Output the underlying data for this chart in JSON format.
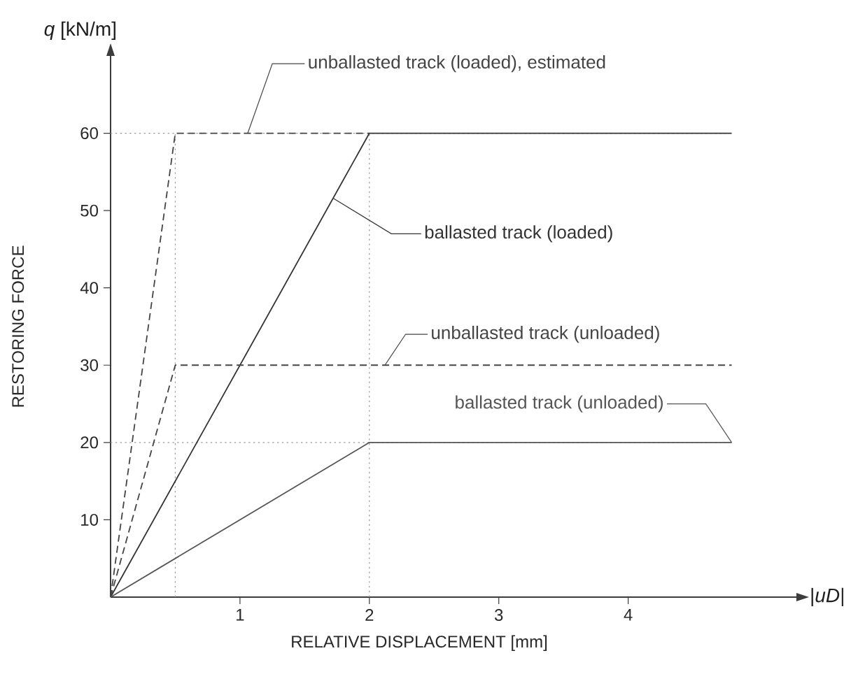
{
  "chart_data": {
    "type": "line",
    "xlabel": "RELATIVE DISPLACEMENT [mm]",
    "ylabel": "RESTORING FORCE",
    "annotations": [
      "*q* [kN/m]",
      "|*uD*|"
    ],
    "xlim": [
      0,
      5.3
    ],
    "ylim": [
      0,
      70
    ],
    "xticks": [
      1,
      2,
      3,
      4
    ],
    "yticks": [
      10,
      20,
      30,
      40,
      50,
      60
    ],
    "ref_lines": [
      {
        "axis": "y",
        "value": 60,
        "color": "#9a9a9a",
        "line_style": "dotted"
      },
      {
        "axis": "y",
        "value": 20,
        "color": "#9a9a9a",
        "line_style": "dotted"
      },
      {
        "axis": "x",
        "value": 0.5,
        "color": "#9a9a9a",
        "line_style": "dotted"
      },
      {
        "axis": "x",
        "value": 2,
        "color": "#9a9a9a",
        "line_style": "dotted"
      }
    ],
    "series": [
      {
        "name": "unballasted track (loaded), estimated",
        "color": "#444444",
        "line_style": "dashed",
        "x": [
          0,
          0.5,
          2
        ],
        "values": [
          0,
          60,
          60
        ]
      },
      {
        "name": "ballasted track (loaded)",
        "color": "#333333",
        "line_style": "solid",
        "x": [
          0,
          2,
          4.8
        ],
        "values": [
          0,
          60,
          60
        ]
      },
      {
        "name": "unballasted track (unloaded)",
        "color": "#444444",
        "line_style": "dashed",
        "x": [
          0,
          0.5,
          4.8
        ],
        "values": [
          0,
          30,
          30
        ]
      },
      {
        "name": "ballasted track (unloaded)",
        "color": "#555555",
        "line_style": "solid",
        "x": [
          0,
          2,
          4.8
        ],
        "values": [
          0,
          20,
          20
        ]
      }
    ]
  }
}
